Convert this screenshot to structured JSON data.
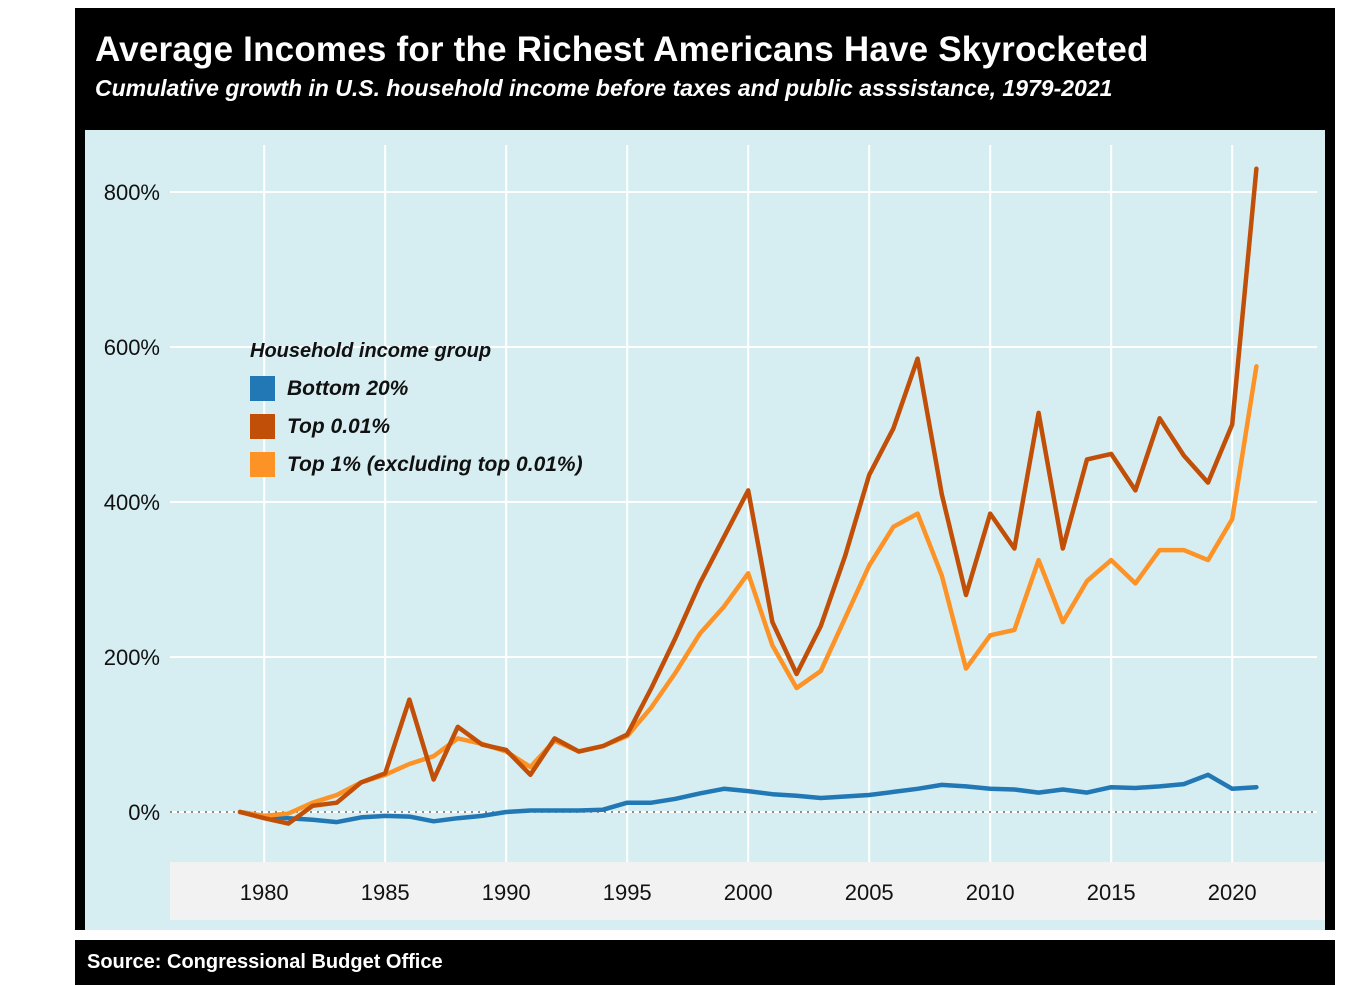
{
  "header": {
    "title": "Average Incomes for the Richest Americans Have Skyrocketed",
    "subtitle": "Cumulative growth in U.S. household income before taxes and public asssistance, 1979-2021"
  },
  "legend": {
    "title": "Household income group"
  },
  "source": {
    "label": "Source: Congressional Budget Office"
  },
  "colors": {
    "figure_background": "#000000",
    "chart_background": "#d6eef2",
    "axis_band": "#f2f2f2",
    "gridline": "#ffffff",
    "zero_line": "#666666",
    "axis_text": "#111111",
    "bottom20": "#2178b5",
    "top001": "#c14f08",
    "top1": "#fd9226"
  },
  "chart_data": {
    "type": "line",
    "title": "Average Incomes for the Richest Americans Have Skyrocketed",
    "subtitle": "Cumulative growth in U.S. household income before taxes and public asssistance, 1979-2021",
    "xlabel": "",
    "ylabel": "",
    "grid": true,
    "legend_position": "upper-left-inside",
    "ylim": [
      -60,
      860
    ],
    "xlim": [
      1979,
      2021
    ],
    "x_ticks": [
      1980,
      1985,
      1990,
      1995,
      2000,
      2005,
      2010,
      2015,
      2020
    ],
    "y_ticks": [
      0,
      200,
      400,
      600,
      800
    ],
    "y_tick_suffix": "%",
    "x": [
      1979,
      1980,
      1981,
      1982,
      1983,
      1984,
      1985,
      1986,
      1987,
      1988,
      1989,
      1990,
      1991,
      1992,
      1993,
      1994,
      1995,
      1996,
      1997,
      1998,
      1999,
      2000,
      2001,
      2002,
      2003,
      2004,
      2005,
      2006,
      2007,
      2008,
      2009,
      2010,
      2011,
      2012,
      2013,
      2014,
      2015,
      2016,
      2017,
      2018,
      2019,
      2020,
      2021
    ],
    "series": [
      {
        "name": "Bottom 20%",
        "color": "#2178b5",
        "values": [
          0,
          -5,
          -8,
          -10,
          -13,
          -7,
          -5,
          -6,
          -12,
          -8,
          -5,
          0,
          2,
          2,
          2,
          3,
          12,
          12,
          17,
          24,
          30,
          27,
          23,
          21,
          18,
          20,
          22,
          26,
          30,
          35,
          33,
          30,
          29,
          25,
          29,
          25,
          32,
          31,
          33,
          36,
          48,
          30,
          32
        ]
      },
      {
        "name": "Top 0.01%",
        "color": "#c14f08",
        "values": [
          0,
          -8,
          -15,
          8,
          12,
          38,
          50,
          145,
          42,
          110,
          87,
          80,
          48,
          95,
          78,
          85,
          100,
          160,
          225,
          295,
          355,
          415,
          245,
          178,
          240,
          330,
          435,
          495,
          585,
          410,
          280,
          385,
          340,
          515,
          340,
          455,
          462,
          415,
          508,
          460,
          425,
          500,
          830
        ]
      },
      {
        "name": "Top 1% (excluding top 0.01%)",
        "color": "#fd9226",
        "values": [
          0,
          -5,
          -2,
          12,
          22,
          38,
          48,
          62,
          72,
          95,
          88,
          78,
          58,
          92,
          78,
          85,
          98,
          135,
          180,
          230,
          265,
          308,
          215,
          160,
          182,
          250,
          318,
          368,
          385,
          305,
          185,
          228,
          235,
          325,
          245,
          298,
          325,
          295,
          338,
          338,
          325,
          378,
          575
        ]
      }
    ]
  }
}
